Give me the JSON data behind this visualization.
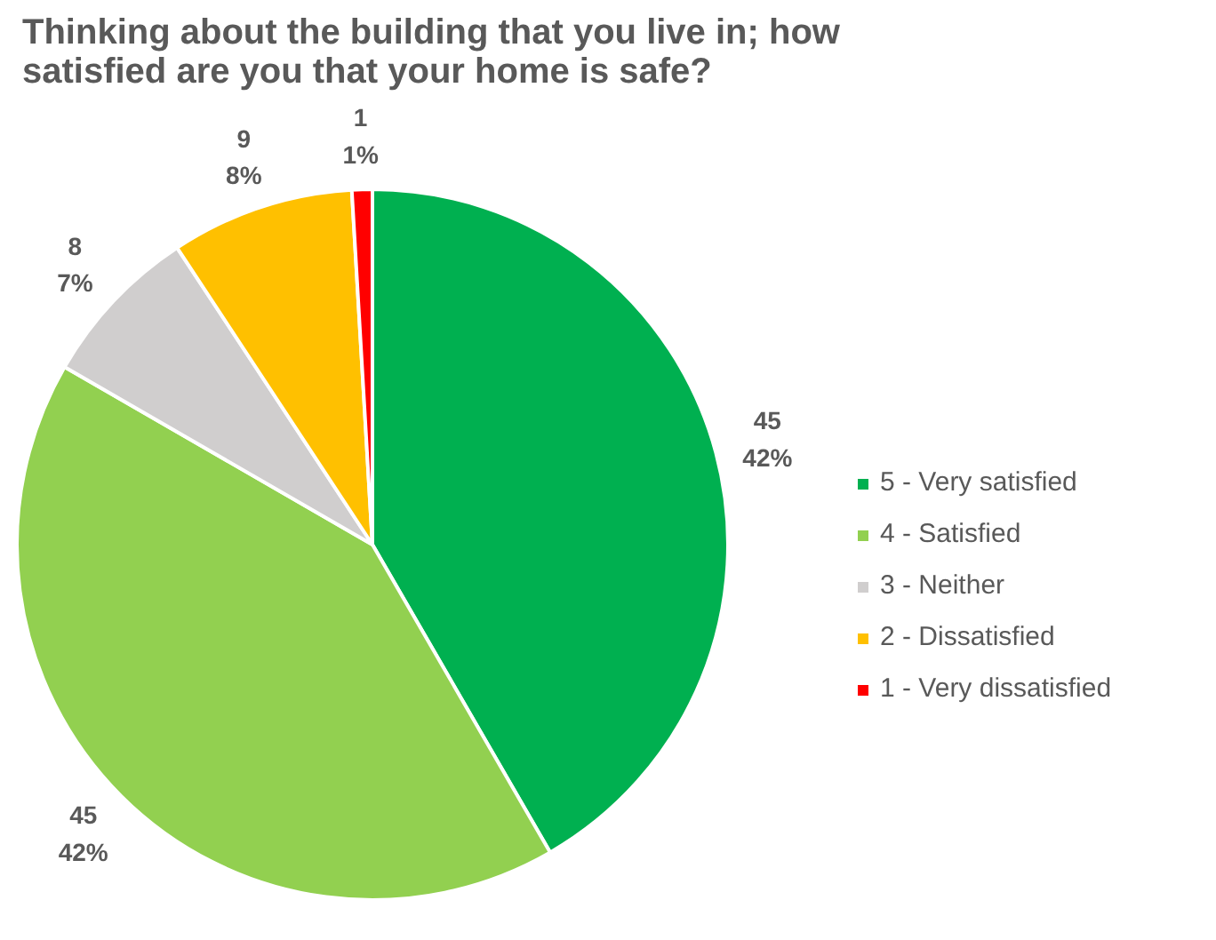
{
  "chart_data": {
    "type": "pie",
    "title": "Thinking about the building that you live in; how\nsatisfied are you that your home is safe?",
    "categories": [
      "5 - Very satisfied",
      "4 - Satisfied",
      "3 - Neither",
      "2 - Dissatisfied",
      "1 - Very dissatisfied"
    ],
    "values": [
      45,
      45,
      8,
      9,
      1
    ],
    "colors": [
      "#00b050",
      "#92d050",
      "#d0cece",
      "#ffc000",
      "#ff0000"
    ],
    "value_labels": [
      "45\n42%",
      "45\n42%",
      "8\n7%",
      "9\n8%",
      "1\n1%"
    ],
    "legend": "right"
  }
}
